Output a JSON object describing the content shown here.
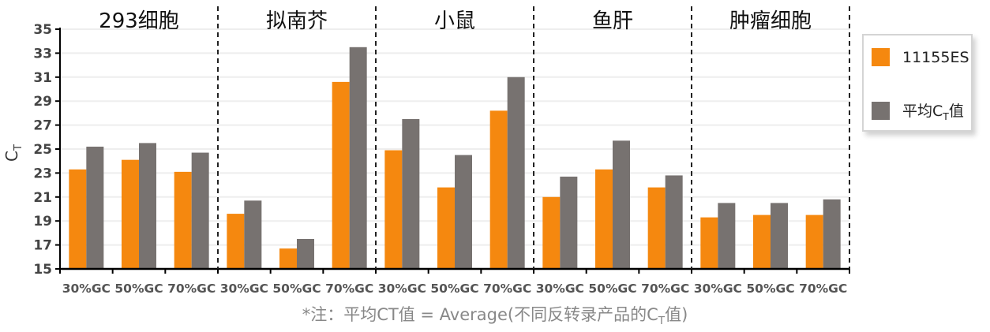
{
  "chart_data": {
    "type": "bar",
    "groups": [
      "293细胞",
      "拟南芥",
      "小鼠",
      "鱼肝",
      "肿瘤细胞"
    ],
    "categories": [
      "30%GC",
      "50%GC",
      "70%GC",
      "30%GC",
      "50%GC",
      "70%GC",
      "30%GC",
      "50%GC",
      "70%GC",
      "30%GC",
      "50%GC",
      "70%GC",
      "30%GC",
      "50%GC",
      "70%GC"
    ],
    "series": [
      {
        "name": "11155ES",
        "color": "#f5880f",
        "values": [
          23.3,
          24.1,
          23.1,
          19.6,
          16.7,
          30.6,
          24.9,
          21.8,
          28.2,
          21.0,
          23.3,
          21.8,
          19.3,
          19.5,
          19.5
        ]
      },
      {
        "name": "平均CT值",
        "name_parts": {
          "main": "平均C",
          "sub": "T",
          "tail": "值"
        },
        "color": "#777270",
        "values": [
          25.2,
          25.5,
          24.7,
          20.7,
          17.5,
          33.5,
          27.5,
          24.5,
          31.0,
          22.7,
          25.7,
          22.8,
          20.5,
          20.5,
          20.8
        ]
      }
    ],
    "ylabel": {
      "main": "C",
      "sub": "T"
    },
    "ylim": [
      15,
      35
    ],
    "yticks": [
      15,
      17,
      19,
      21,
      23,
      25,
      27,
      29,
      31,
      33,
      35
    ],
    "grid": true,
    "legend": "right",
    "footnote": {
      "main": "*注：平均CT值 = Average(不同反转录产品的C",
      "sub": "T",
      "tail": "值)"
    }
  }
}
